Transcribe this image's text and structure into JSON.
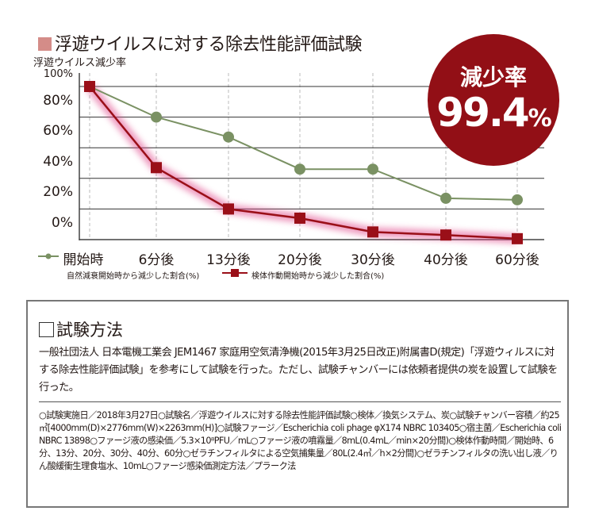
{
  "title": "浮遊ウイルスに対する除去性能評価試験",
  "badge": {
    "label": "減少率",
    "value": "99.4",
    "unit": "%",
    "color": "#920f16"
  },
  "chart_data": {
    "type": "line",
    "ylabel": "浮遊ウイルス減少率",
    "ylabel_overlap": "100%",
    "ytick_labels": [
      "80%",
      "60%",
      "40%",
      "20%",
      "0%"
    ],
    "ylim": [
      0,
      100
    ],
    "grid": true,
    "categories": [
      "開始時",
      "6分後",
      "13分後",
      "20分後",
      "30分後",
      "40分後",
      "60分後"
    ],
    "series": [
      {
        "name": "自然減衰開始時から減少した割合(%)",
        "marker": "circle",
        "color": "#7a9163",
        "values": [
          100,
          80,
          67,
          46,
          46,
          27,
          26
        ]
      },
      {
        "name": "検体作動開始時から減少した割合(%)",
        "marker": "square",
        "color": "#9a0f18",
        "glow": "#e0468a",
        "values": [
          100,
          47,
          20,
          14,
          5,
          3,
          0.6
        ]
      }
    ],
    "legend_placement": "bottom"
  },
  "method": {
    "heading": "試験方法",
    "description": "一般社団法人 日本電機工業会 JEM1467 家庭用空気清浄機(2015年3月25日改正)附属書D(規定)「浮遊ウィルスに対する除去性能評価試験」を参考にして試験を行った。ただし、試験チャンバーには依頼者提供の炭を設置して試験を行った。",
    "details": "○試験実施日／2018年3月27日○試験名／浮遊ウイルスに対する除去性能評価試験○検体／換気システム、炭○試験チャンバー容積／約25㎥[4000mm(D)×2776mm(W)×2263mm(H)]○試験ファージ／Escherichia coli phage φX174 NBRC 103405○宿主菌／Escherichia coli NBRC 13898○ファージ液の感染価／5.3×10⁸PFU／mL○ファージ液の噴霧量／8mL(0.4mL／min×20分間)○検体作動時間／開始時、6分、13分、20分、30分、40分、60分○ゼラチンフィルタによる空気捕集量／80L(2.4㎥／h×2分間)○ゼラチンフィルタの洗い出し液／りん酸緩衝生理食塩水、10mL○ファージ感染価測定方法／プラーク法"
  }
}
